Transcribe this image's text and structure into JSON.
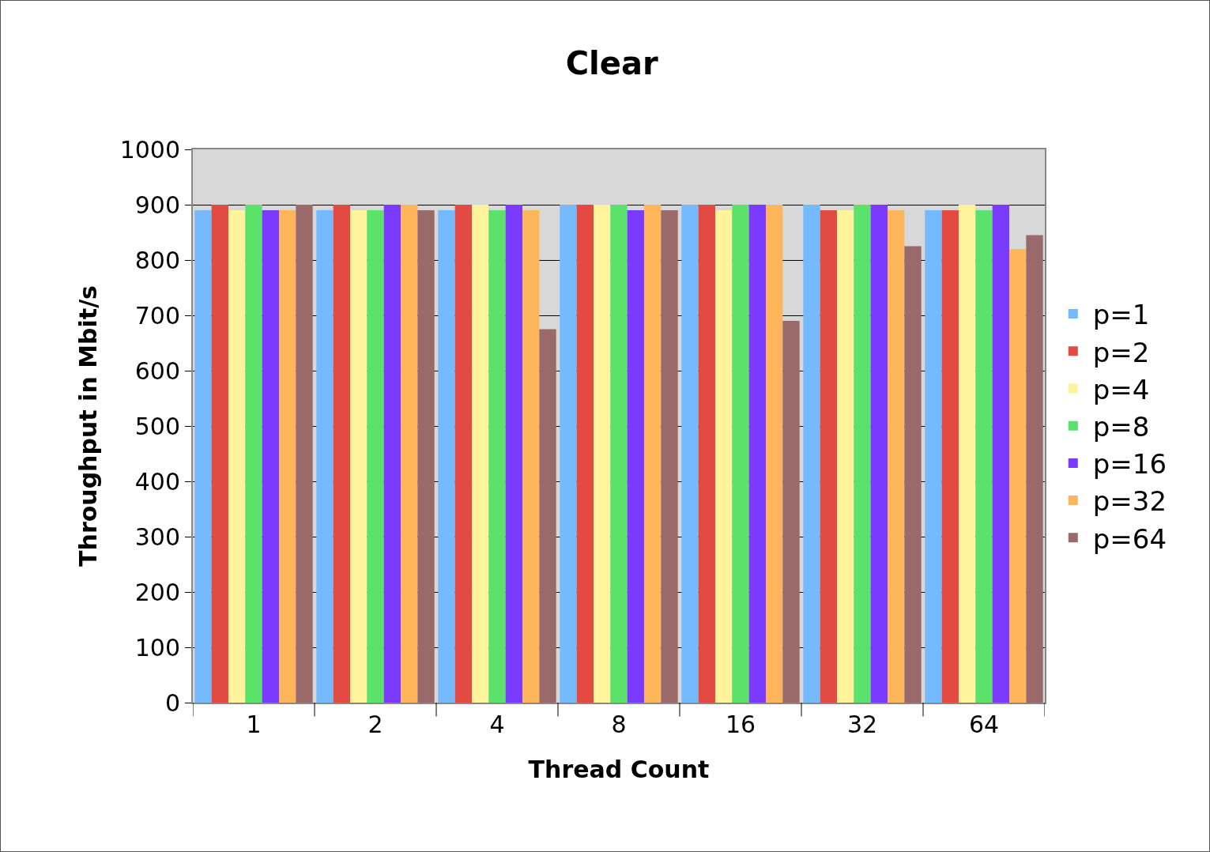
{
  "chart_data": {
    "type": "bar",
    "title": "Clear",
    "xlabel": "Thread Count",
    "ylabel": "Throughput in Mbit/s",
    "categories": [
      "1",
      "2",
      "4",
      "8",
      "16",
      "32",
      "64"
    ],
    "series": [
      {
        "name": "p=1",
        "color": "#75b9ff",
        "values": [
          890,
          890,
          890,
          900,
          900,
          900,
          890
        ]
      },
      {
        "name": "p=2",
        "color": "#e34a42",
        "values": [
          900,
          900,
          900,
          900,
          900,
          890,
          890
        ]
      },
      {
        "name": "p=4",
        "color": "#fff49c",
        "values": [
          890,
          890,
          900,
          900,
          890,
          890,
          900
        ]
      },
      {
        "name": "p=8",
        "color": "#5ae26b",
        "values": [
          900,
          890,
          890,
          900,
          900,
          900,
          890
        ]
      },
      {
        "name": "p=16",
        "color": "#7b3aff",
        "values": [
          890,
          900,
          900,
          890,
          900,
          900,
          900
        ]
      },
      {
        "name": "p=32",
        "color": "#ffb65a",
        "values": [
          890,
          900,
          890,
          900,
          900,
          890,
          820
        ]
      },
      {
        "name": "p=64",
        "color": "#9a6a6a",
        "values": [
          900,
          890,
          675,
          890,
          690,
          825,
          845
        ]
      }
    ],
    "ylim": [
      0,
      1000
    ],
    "yticks": [
      0,
      100,
      200,
      300,
      400,
      500,
      600,
      700,
      800,
      900,
      1000
    ],
    "grid": "y",
    "legend": "right"
  }
}
